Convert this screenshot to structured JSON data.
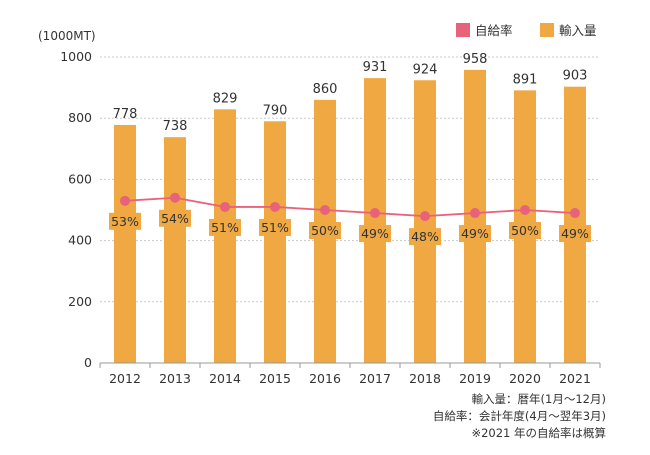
{
  "chart_data": {
    "type": "bar",
    "categories": [
      "2012",
      "2013",
      "2014",
      "2015",
      "2016",
      "2017",
      "2018",
      "2019",
      "2020",
      "2021"
    ],
    "unit_label": "(1000MT)",
    "ylim": [
      0,
      1000
    ],
    "yticks": [
      0,
      200,
      400,
      600,
      800,
      1000
    ],
    "grid": true,
    "legend_position": "top-right",
    "series": [
      {
        "name": "輸入量",
        "type": "bar",
        "color": "#F0A843",
        "values": [
          778,
          738,
          829,
          790,
          860,
          931,
          924,
          958,
          891,
          903
        ],
        "labels": [
          "778",
          "738",
          "829",
          "790",
          "860",
          "931",
          "924",
          "958",
          "891",
          "903"
        ]
      },
      {
        "name": "自給率",
        "type": "line",
        "color": "#E8637A",
        "values": [
          53,
          54,
          51,
          51,
          50,
          49,
          48,
          49,
          50,
          49
        ],
        "labels": [
          "53%",
          "54%",
          "51%",
          "51%",
          "50%",
          "49%",
          "48%",
          "49%",
          "50%",
          "49%"
        ]
      }
    ],
    "notes": [
      "輸入量：暦年(1月〜12月)",
      "自給率：会計年度(4月〜翌年3月)",
      "※2021 年の自給率は概算"
    ]
  }
}
